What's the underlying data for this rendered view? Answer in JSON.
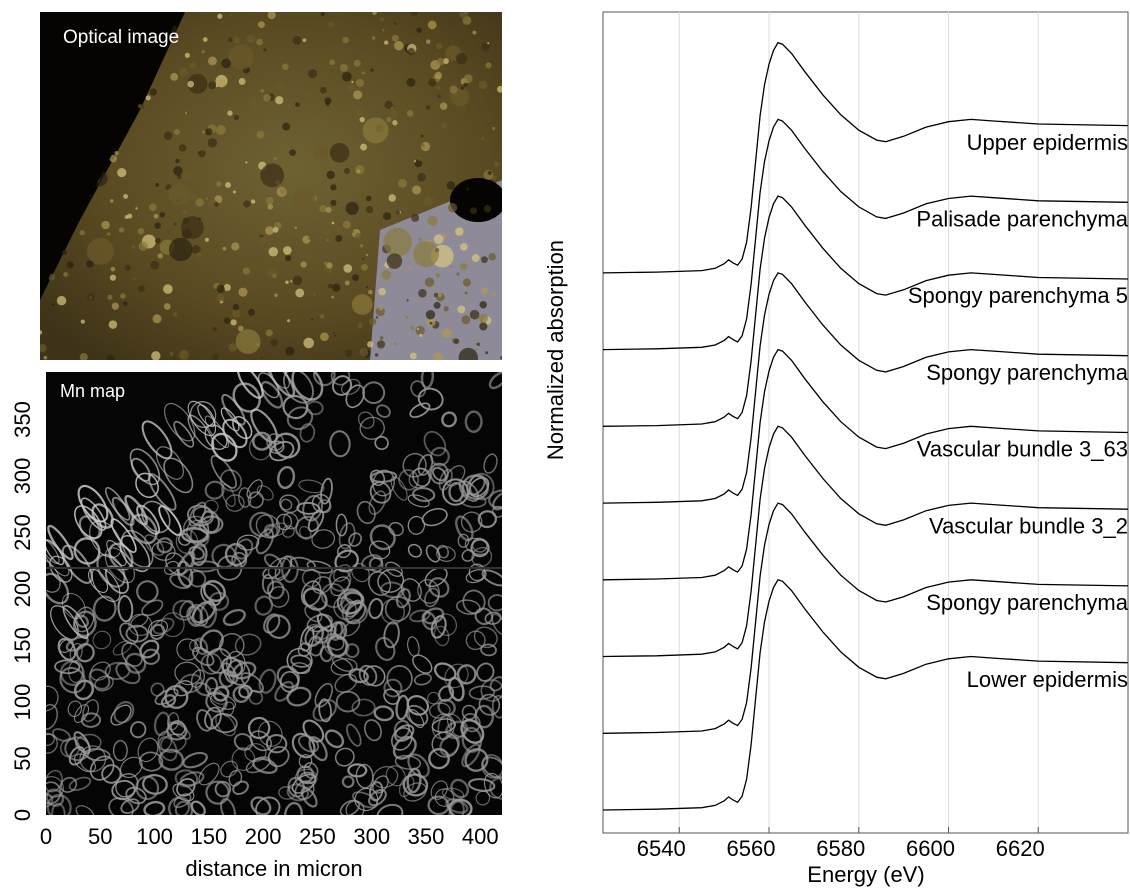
{
  "optical_image": {
    "label": "Optical image"
  },
  "chart_data": [
    {
      "type": "image",
      "title": "Mn map",
      "xlabel": "distance in micron",
      "xlim": [
        0,
        420
      ],
      "xticks": [
        0,
        50,
        100,
        150,
        200,
        250,
        300,
        350,
        400
      ],
      "ylim": [
        0,
        392
      ],
      "yticks": [
        0,
        50,
        100,
        150,
        200,
        250,
        300,
        350
      ]
    },
    {
      "type": "line",
      "xlabel": "Energy (eV)",
      "ylabel": "Normalized absorption",
      "color": "#000000",
      "grid": true,
      "xlim": [
        6523,
        6640
      ],
      "xticks": [
        6540,
        6560,
        6580,
        6600,
        6620
      ],
      "ylim": [
        -0.3,
        10.4
      ],
      "x": [
        6523,
        6535,
        6545,
        6548,
        6550,
        6551,
        6552,
        6553,
        6554,
        6555,
        6556,
        6557,
        6558,
        6559,
        6560,
        6561,
        6562,
        6563,
        6565,
        6568,
        6572,
        6576,
        6580,
        6584,
        6586,
        6590,
        6595,
        6600,
        6605,
        6610,
        6620,
        6640
      ],
      "series": [
        {
          "name": "Upper epidermis",
          "values": [
            7,
            7.01,
            7.03,
            7.06,
            7.12,
            7.17,
            7.13,
            7.1,
            7.18,
            7.4,
            7.85,
            8.45,
            9.05,
            9.45,
            9.72,
            9.9,
            10,
            9.98,
            9.86,
            9.62,
            9.32,
            9.06,
            8.86,
            8.73,
            8.71,
            8.78,
            8.9,
            8.97,
            9,
            8.98,
            8.94,
            8.92
          ]
        },
        {
          "name": "Palisade parenchyma",
          "values": [
            6,
            6.01,
            6.03,
            6.06,
            6.12,
            6.17,
            6.13,
            6.1,
            6.18,
            6.4,
            6.85,
            7.45,
            8.05,
            8.45,
            8.72,
            8.9,
            9,
            8.98,
            8.86,
            8.62,
            8.32,
            8.06,
            7.86,
            7.73,
            7.71,
            7.78,
            7.9,
            7.97,
            8,
            7.98,
            7.94,
            7.92
          ]
        },
        {
          "name": "Spongy parenchyma 5",
          "values": [
            5,
            5.01,
            5.03,
            5.06,
            5.12,
            5.17,
            5.13,
            5.1,
            5.18,
            5.4,
            5.85,
            6.45,
            7.05,
            7.45,
            7.72,
            7.9,
            8,
            7.98,
            7.86,
            7.62,
            7.32,
            7.06,
            6.86,
            6.73,
            6.71,
            6.78,
            6.9,
            6.97,
            7,
            6.98,
            6.94,
            6.92
          ]
        },
        {
          "name": "Spongy parenchyma",
          "values": [
            4,
            4.01,
            4.03,
            4.06,
            4.12,
            4.17,
            4.13,
            4.1,
            4.18,
            4.4,
            4.85,
            5.45,
            6.05,
            6.45,
            6.72,
            6.9,
            7,
            6.98,
            6.86,
            6.62,
            6.32,
            6.06,
            5.86,
            5.73,
            5.71,
            5.78,
            5.9,
            5.97,
            6,
            5.98,
            5.94,
            5.92
          ]
        },
        {
          "name": "Vascular bundle 3_63",
          "values": [
            3,
            3.01,
            3.03,
            3.06,
            3.12,
            3.17,
            3.13,
            3.1,
            3.18,
            3.4,
            3.85,
            4.45,
            5.05,
            5.45,
            5.72,
            5.9,
            6,
            5.98,
            5.86,
            5.62,
            5.32,
            5.06,
            4.86,
            4.73,
            4.71,
            4.78,
            4.9,
            4.97,
            5,
            4.98,
            4.94,
            4.92
          ]
        },
        {
          "name": "Vascular bundle 3_2",
          "values": [
            2,
            2.01,
            2.03,
            2.06,
            2.12,
            2.17,
            2.13,
            2.1,
            2.18,
            2.4,
            2.85,
            3.45,
            4.05,
            4.45,
            4.72,
            4.9,
            5,
            4.98,
            4.86,
            4.62,
            4.32,
            4.06,
            3.86,
            3.73,
            3.71,
            3.78,
            3.9,
            3.97,
            4,
            3.98,
            3.94,
            3.92
          ]
        },
        {
          "name": "Spongy parenchyma",
          "values": [
            1,
            1.01,
            1.03,
            1.06,
            1.12,
            1.17,
            1.13,
            1.1,
            1.18,
            1.4,
            1.85,
            2.45,
            3.05,
            3.45,
            3.72,
            3.9,
            4,
            3.98,
            3.86,
            3.62,
            3.32,
            3.06,
            2.86,
            2.73,
            2.71,
            2.78,
            2.9,
            2.97,
            3,
            2.98,
            2.94,
            2.92
          ]
        },
        {
          "name": "Lower epidermis",
          "values": [
            0,
            0.01,
            0.03,
            0.06,
            0.12,
            0.17,
            0.13,
            0.1,
            0.18,
            0.4,
            0.85,
            1.45,
            2.05,
            2.45,
            2.72,
            2.9,
            3,
            2.98,
            2.86,
            2.62,
            2.32,
            2.06,
            1.86,
            1.73,
            1.71,
            1.78,
            1.9,
            1.97,
            2,
            1.98,
            1.94,
            1.92
          ]
        }
      ]
    }
  ]
}
